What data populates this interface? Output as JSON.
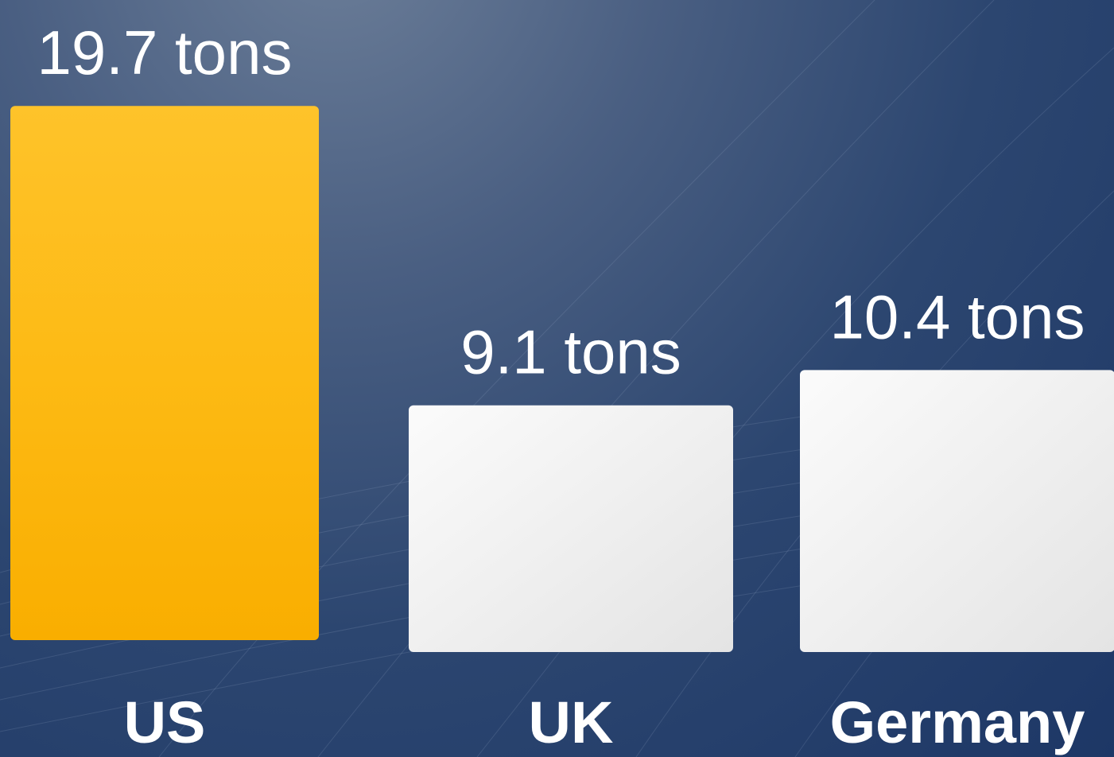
{
  "chart_data": {
    "type": "bar",
    "categories": [
      "US",
      "UK",
      "Germany"
    ],
    "values": [
      19.7,
      9.1,
      10.4
    ],
    "value_labels": [
      "19.7 tons",
      "9.1 tons",
      "10.4 tons"
    ],
    "unit": "tons",
    "title": "",
    "xlabel": "",
    "ylabel": "",
    "grid": false,
    "legend": "none",
    "bar_colors": [
      "#fdb813",
      "#f2f2f2",
      "#f2f2f2"
    ]
  }
}
